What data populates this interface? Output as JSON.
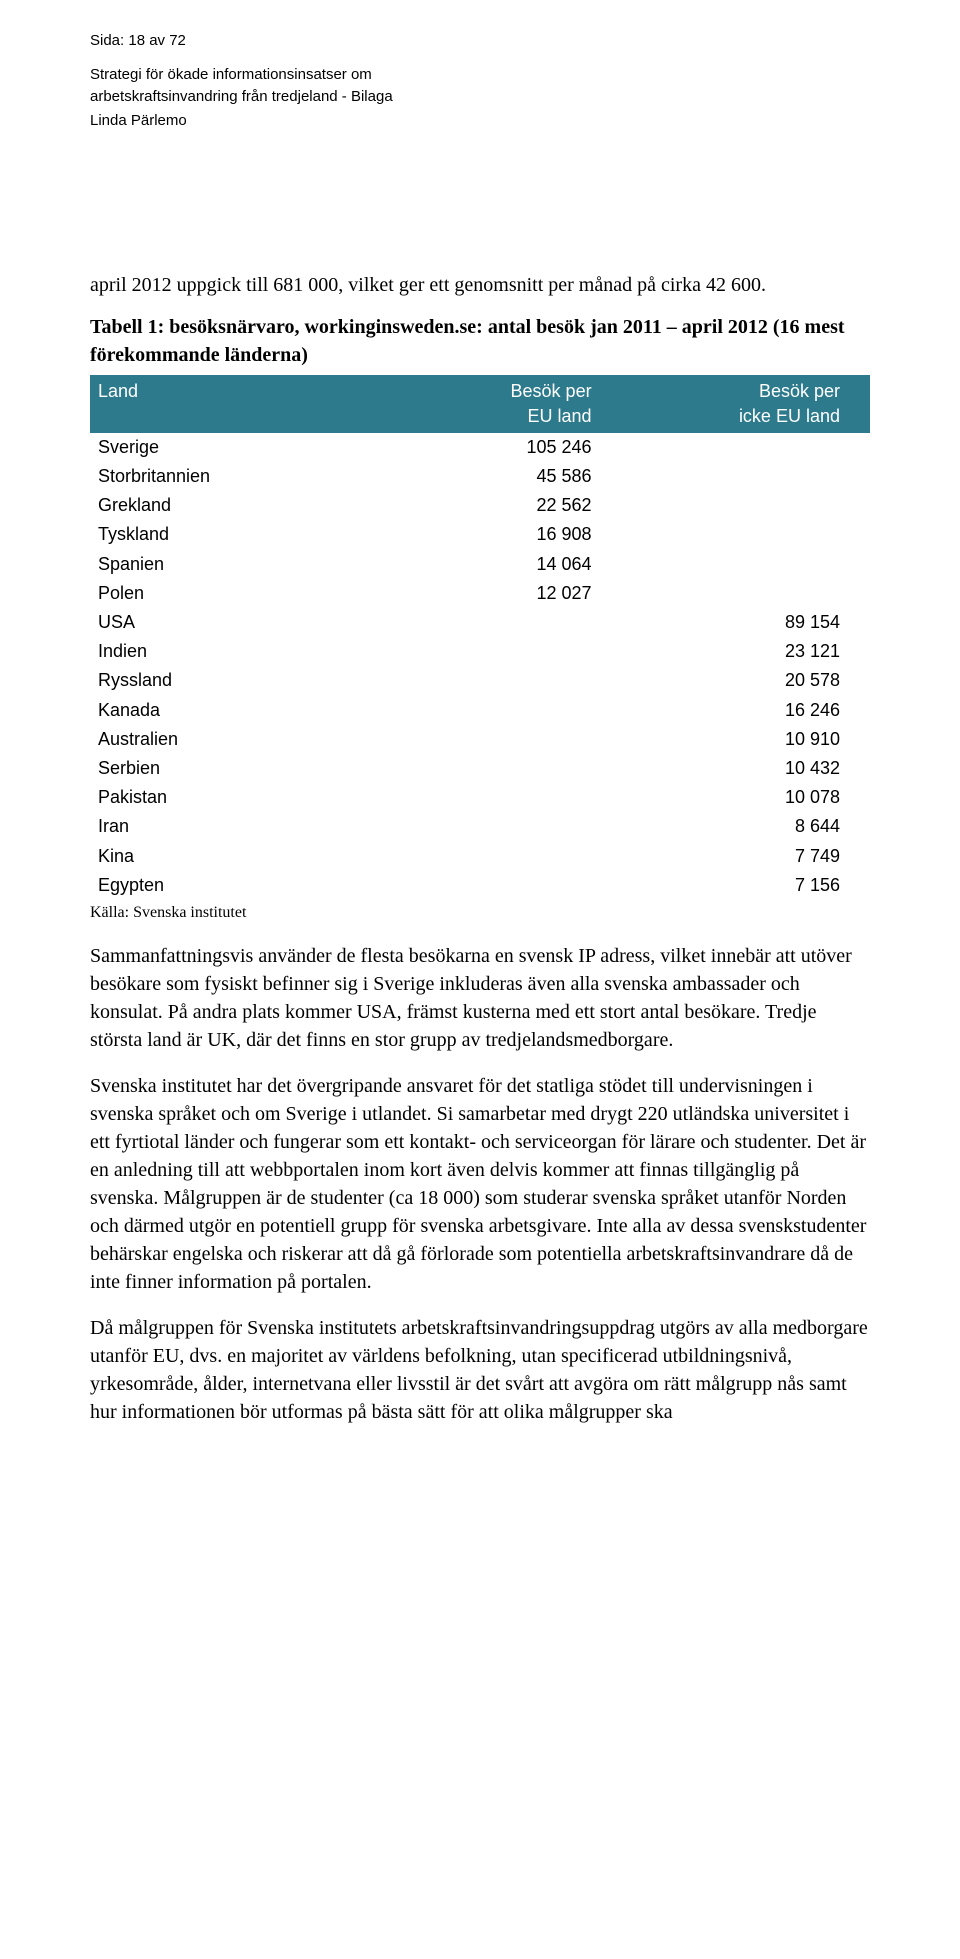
{
  "header": {
    "page_number": "Sida: 18 av 72",
    "subtitle_line1": "Strategi för ökade informationsinsatser om",
    "subtitle_line2": "arbetskraftsinvandring från tredjeland - Bilaga",
    "author": "Linda Pärlemo"
  },
  "intro": "april 2012 uppgick till 681 000, vilket ger ett genomsnitt per månad på cirka 42 600.",
  "table": {
    "caption": "Tabell 1: besöksnärvaro, workinginsweden.se: antal besök jan 2011 – april 2012 (16 mest förekommande länderna)",
    "header_bg": "#2c7a8c",
    "header_fg": "#ffffff",
    "columns": {
      "land": "Land",
      "eu_line1": "Besök per",
      "eu_line2": "EU land",
      "noneu_line1": "Besök per",
      "noneu_line2": "icke EU land"
    },
    "rows": [
      {
        "land": "Sverige",
        "eu": "105 246",
        "noneu": ""
      },
      {
        "land": "Storbritannien",
        "eu": "45 586",
        "noneu": ""
      },
      {
        "land": "Grekland",
        "eu": "22 562",
        "noneu": ""
      },
      {
        "land": "Tyskland",
        "eu": "16 908",
        "noneu": ""
      },
      {
        "land": "Spanien",
        "eu": "14 064",
        "noneu": ""
      },
      {
        "land": "Polen",
        "eu": "12 027",
        "noneu": ""
      },
      {
        "land": "USA",
        "eu": "",
        "noneu": "89 154"
      },
      {
        "land": "Indien",
        "eu": "",
        "noneu": "23 121"
      },
      {
        "land": "Ryssland",
        "eu": "",
        "noneu": "20 578"
      },
      {
        "land": "Kanada",
        "eu": "",
        "noneu": "16 246"
      },
      {
        "land": "Australien",
        "eu": "",
        "noneu": "10 910"
      },
      {
        "land": "Serbien",
        "eu": "",
        "noneu": "10 432"
      },
      {
        "land": "Pakistan",
        "eu": "",
        "noneu": "10 078"
      },
      {
        "land": "Iran",
        "eu": "",
        "noneu": "8 644"
      },
      {
        "land": "Kina",
        "eu": "",
        "noneu": "7 749"
      },
      {
        "land": "Egypten",
        "eu": "",
        "noneu": "7 156"
      }
    ]
  },
  "source": "Källa: Svenska institutet",
  "paragraphs": [
    "Sammanfattningsvis använder de flesta besökarna en svensk IP adress, vilket innebär att utöver besökare som fysiskt befinner sig i Sverige inkluderas även alla svenska ambassader och konsulat. På andra plats kommer USA, främst kusterna med ett stort antal besökare. Tredje största land är UK, där det finns en stor grupp av tredjelandsmedborgare.",
    "Svenska institutet har det övergripande ansvaret för det statliga stödet till undervisningen i svenska språket och om Sverige i utlandet. Si samarbetar med drygt 220 utländska universitet i ett fyrtiotal länder och fungerar som ett kontakt- och serviceorgan för lärare och studenter. Det är en anledning till att webbportalen inom kort även delvis kommer att finnas tillgänglig på svenska. Målgruppen är  de studenter (ca 18 000) som studerar svenska språket utanför Norden och därmed utgör en potentiell grupp för svenska arbetsgivare. Inte alla av dessa svenskstudenter behärskar engelska och riskerar att då gå förlorade som potentiella arbetskraftsinvandrare då de inte finner information på portalen.",
    "Då målgruppen för Svenska institutets arbetskraftsinvandringsuppdrag utgörs av alla medborgare utanför EU, dvs. en majoritet av världens befolkning, utan specificerad utbildningsnivå, yrkesområde, ålder, internetvana eller livsstil är det svårt att avgöra om rätt målgrupp nås samt hur informationen bör utformas på bästa sätt för att olika målgrupper ska"
  ]
}
